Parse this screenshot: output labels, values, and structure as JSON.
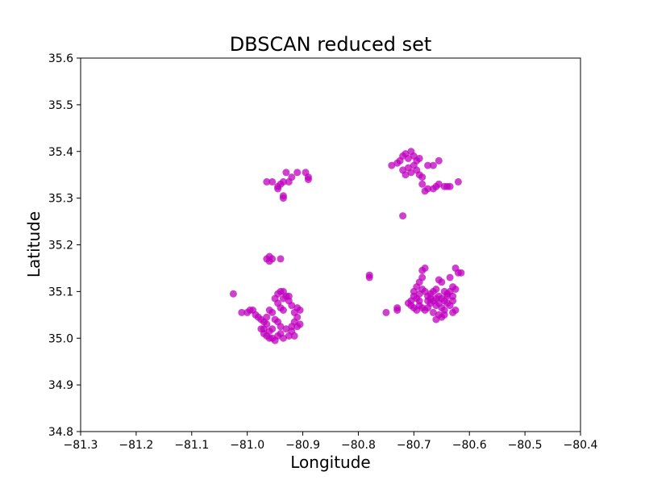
{
  "chart_data": {
    "type": "scatter",
    "title": "DBSCAN reduced set",
    "xlabel": "Longitude",
    "ylabel": "Latitude",
    "xlim": [
      -81.3,
      -80.4
    ],
    "ylim": [
      34.8,
      35.6
    ],
    "xticks": [
      -81.3,
      -81.2,
      -81.1,
      -81.0,
      -80.9,
      -80.8,
      -80.7,
      -80.6,
      -80.5,
      -80.4
    ],
    "xtick_labels": [
      "−81.3",
      "−81.2",
      "−81.1",
      "−81.0",
      "−80.9",
      "−80.8",
      "−80.7",
      "−80.6",
      "−80.5",
      "−80.4"
    ],
    "yticks": [
      34.8,
      34.9,
      35.0,
      35.1,
      35.2,
      35.3,
      35.4,
      35.5,
      35.6
    ],
    "ytick_labels": [
      "34.8",
      "34.9",
      "35.0",
      "35.1",
      "35.2",
      "35.3",
      "35.4",
      "35.5",
      "35.6"
    ],
    "grid": false,
    "legend": false,
    "point_color": "#bf00bf",
    "series": [
      {
        "points": [
          [
            -80.965,
            35.335
          ],
          [
            -80.955,
            35.335
          ],
          [
            -80.945,
            35.325
          ],
          [
            -80.94,
            35.33
          ],
          [
            -80.935,
            35.335
          ],
          [
            -80.93,
            35.355
          ],
          [
            -80.92,
            35.345
          ],
          [
            -80.91,
            35.355
          ],
          [
            -80.895,
            35.355
          ],
          [
            -80.89,
            35.345
          ],
          [
            -80.89,
            35.34
          ],
          [
            -80.935,
            35.305
          ],
          [
            -80.935,
            35.3
          ],
          [
            -80.925,
            35.335
          ],
          [
            -80.945,
            35.32
          ],
          [
            -80.74,
            35.37
          ],
          [
            -80.73,
            35.375
          ],
          [
            -80.725,
            35.38
          ],
          [
            -80.72,
            35.39
          ],
          [
            -80.715,
            35.395
          ],
          [
            -80.71,
            35.385
          ],
          [
            -80.705,
            35.4
          ],
          [
            -80.7,
            35.39
          ],
          [
            -80.695,
            35.38
          ],
          [
            -80.69,
            35.385
          ],
          [
            -80.7,
            35.37
          ],
          [
            -80.71,
            35.365
          ],
          [
            -80.72,
            35.36
          ],
          [
            -80.705,
            35.355
          ],
          [
            -80.695,
            35.36
          ],
          [
            -80.69,
            35.35
          ],
          [
            -80.685,
            35.345
          ],
          [
            -80.685,
            35.33
          ],
          [
            -80.68,
            35.315
          ],
          [
            -80.675,
            35.32
          ],
          [
            -80.665,
            35.32
          ],
          [
            -80.66,
            35.325
          ],
          [
            -80.655,
            35.33
          ],
          [
            -80.645,
            35.325
          ],
          [
            -80.64,
            35.325
          ],
          [
            -80.635,
            35.325
          ],
          [
            -80.62,
            35.335
          ],
          [
            -80.675,
            35.37
          ],
          [
            -80.665,
            35.37
          ],
          [
            -80.655,
            35.38
          ],
          [
            -80.715,
            35.35
          ],
          [
            -80.72,
            35.262
          ],
          [
            -80.965,
            35.17
          ],
          [
            -80.96,
            35.165
          ],
          [
            -80.96,
            35.175
          ],
          [
            -80.955,
            35.17
          ],
          [
            -80.94,
            35.17
          ],
          [
            -81.025,
            35.095
          ],
          [
            -81.01,
            35.055
          ],
          [
            -81.0,
            35.055
          ],
          [
            -80.995,
            35.06
          ],
          [
            -80.99,
            35.06
          ],
          [
            -80.985,
            35.05
          ],
          [
            -80.98,
            35.045
          ],
          [
            -80.975,
            35.04
          ],
          [
            -80.97,
            35.035
          ],
          [
            -80.965,
            35.03
          ],
          [
            -80.97,
            35.02
          ],
          [
            -80.97,
            35.01
          ],
          [
            -80.965,
            35.005
          ],
          [
            -80.96,
            35.0
          ],
          [
            -80.955,
            35.0
          ],
          [
            -80.95,
            34.995
          ],
          [
            -80.945,
            35.005
          ],
          [
            -80.94,
            35.01
          ],
          [
            -80.935,
            35.0
          ],
          [
            -80.925,
            35.005
          ],
          [
            -80.92,
            35.015
          ],
          [
            -80.915,
            35.005
          ],
          [
            -80.92,
            35.025
          ],
          [
            -80.915,
            35.035
          ],
          [
            -80.91,
            35.045
          ],
          [
            -80.915,
            35.055
          ],
          [
            -80.91,
            35.065
          ],
          [
            -80.905,
            35.06
          ],
          [
            -80.92,
            35.07
          ],
          [
            -80.925,
            35.08
          ],
          [
            -80.93,
            35.09
          ],
          [
            -80.935,
            35.1
          ],
          [
            -80.94,
            35.1
          ],
          [
            -80.945,
            35.095
          ],
          [
            -80.95,
            35.085
          ],
          [
            -80.945,
            35.075
          ],
          [
            -80.94,
            35.065
          ],
          [
            -80.935,
            35.06
          ],
          [
            -80.96,
            35.06
          ],
          [
            -80.955,
            35.055
          ],
          [
            -80.965,
            35.045
          ],
          [
            -80.95,
            35.04
          ],
          [
            -80.945,
            35.035
          ],
          [
            -80.975,
            35.02
          ],
          [
            -80.96,
            35.015
          ],
          [
            -80.955,
            35.02
          ],
          [
            -80.94,
            35.025
          ],
          [
            -80.93,
            35.02
          ],
          [
            -80.905,
            35.03
          ],
          [
            -80.91,
            35.025
          ],
          [
            -80.925,
            35.09
          ],
          [
            -80.935,
            35.085
          ],
          [
            -80.78,
            35.135
          ],
          [
            -80.78,
            35.13
          ],
          [
            -80.75,
            35.055
          ],
          [
            -80.73,
            35.065
          ],
          [
            -80.73,
            35.06
          ],
          [
            -80.71,
            35.075
          ],
          [
            -80.705,
            35.08
          ],
          [
            -80.7,
            35.09
          ],
          [
            -80.695,
            35.085
          ],
          [
            -80.69,
            35.08
          ],
          [
            -80.69,
            35.07
          ],
          [
            -80.685,
            35.065
          ],
          [
            -80.68,
            35.06
          ],
          [
            -80.675,
            35.065
          ],
          [
            -80.67,
            35.075
          ],
          [
            -80.665,
            35.08
          ],
          [
            -80.66,
            35.085
          ],
          [
            -80.655,
            35.09
          ],
          [
            -80.65,
            35.085
          ],
          [
            -80.645,
            35.08
          ],
          [
            -80.64,
            35.075
          ],
          [
            -80.635,
            35.07
          ],
          [
            -80.63,
            35.08
          ],
          [
            -80.625,
            35.06
          ],
          [
            -80.63,
            35.055
          ],
          [
            -80.645,
            35.05
          ],
          [
            -80.65,
            35.045
          ],
          [
            -80.66,
            35.04
          ],
          [
            -80.655,
            35.05
          ],
          [
            -80.665,
            35.055
          ],
          [
            -80.675,
            35.09
          ],
          [
            -80.68,
            35.1
          ],
          [
            -80.685,
            35.105
          ],
          [
            -80.69,
            35.095
          ],
          [
            -80.7,
            35.1
          ],
          [
            -80.695,
            35.11
          ],
          [
            -80.69,
            35.12
          ],
          [
            -80.685,
            35.13
          ],
          [
            -80.685,
            35.145
          ],
          [
            -80.68,
            35.15
          ],
          [
            -80.665,
            35.1
          ],
          [
            -80.66,
            35.105
          ],
          [
            -80.65,
            35.12
          ],
          [
            -80.655,
            35.125
          ],
          [
            -80.645,
            35.1
          ],
          [
            -80.64,
            35.095
          ],
          [
            -80.635,
            35.1
          ],
          [
            -80.63,
            35.11
          ],
          [
            -80.625,
            35.105
          ],
          [
            -80.62,
            35.14
          ],
          [
            -80.625,
            35.15
          ],
          [
            -80.615,
            35.14
          ],
          [
            -80.635,
            35.13
          ],
          [
            -80.67,
            35.085
          ],
          [
            -80.675,
            35.08
          ],
          [
            -80.705,
            35.07
          ],
          [
            -80.7,
            35.065
          ],
          [
            -80.695,
            35.06
          ],
          [
            -80.66,
            35.07
          ],
          [
            -80.655,
            35.075
          ],
          [
            -80.65,
            35.065
          ],
          [
            -80.645,
            35.06
          ],
          [
            -80.64,
            35.09
          ],
          [
            -80.63,
            35.09
          ],
          [
            -80.67,
            35.095
          ]
        ]
      }
    ]
  }
}
